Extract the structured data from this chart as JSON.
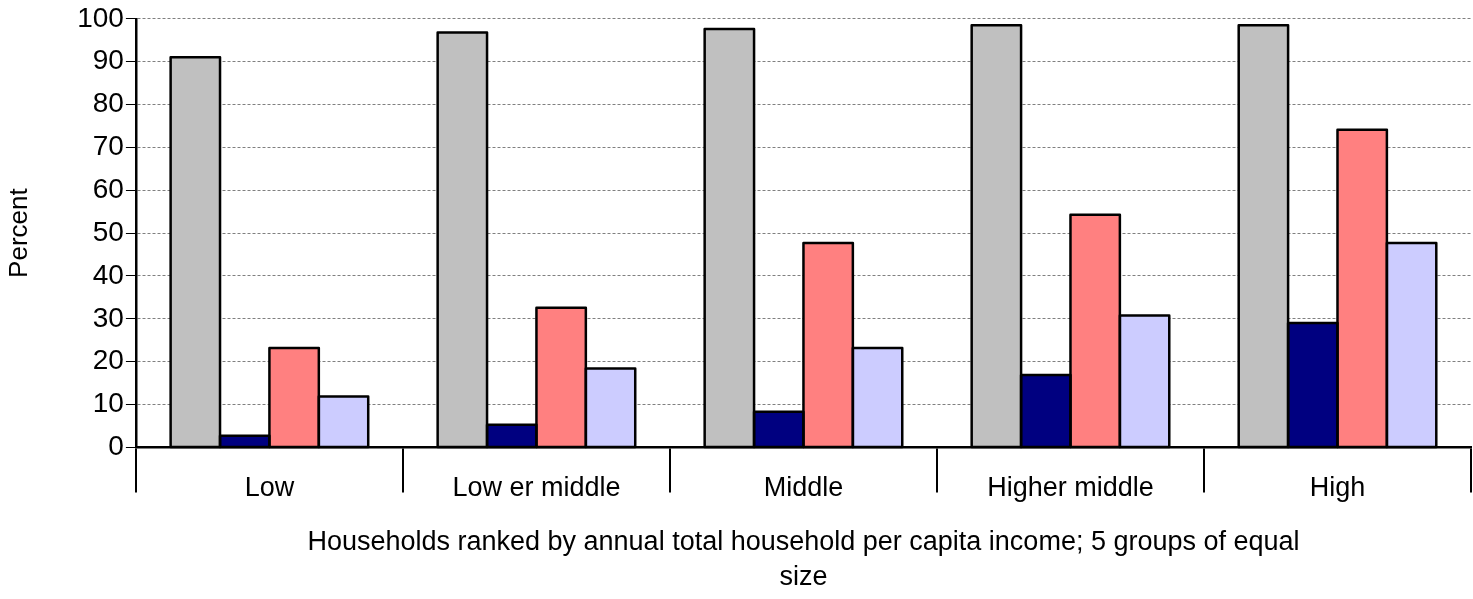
{
  "chart_data": {
    "type": "bar",
    "ylabel": "Percent",
    "xlabel": "Households ranked by annual total household per capita income; 5 groups of equal size",
    "categories": [
      "Low",
      "Low er middle",
      "Middle",
      "Higher middle",
      "High"
    ],
    "series": [
      {
        "color": "#c0c0c0",
        "values": [
          91.0,
          96.8,
          97.6,
          98.5,
          98.5
        ]
      },
      {
        "color": "#000080",
        "values": [
          2.7,
          5.3,
          8.3,
          16.9,
          29.0
        ]
      },
      {
        "color": "#ff8080",
        "values": [
          23.2,
          32.6,
          47.7,
          54.3,
          74.1
        ]
      },
      {
        "color": "#ccccff",
        "values": [
          11.9,
          18.4,
          23.2,
          30.8,
          47.7
        ]
      }
    ],
    "ylim": [
      0,
      100
    ],
    "yticks": [
      0,
      10,
      20,
      30,
      40,
      50,
      60,
      70,
      80,
      90,
      100
    ],
    "grid": "y",
    "legend": false
  }
}
